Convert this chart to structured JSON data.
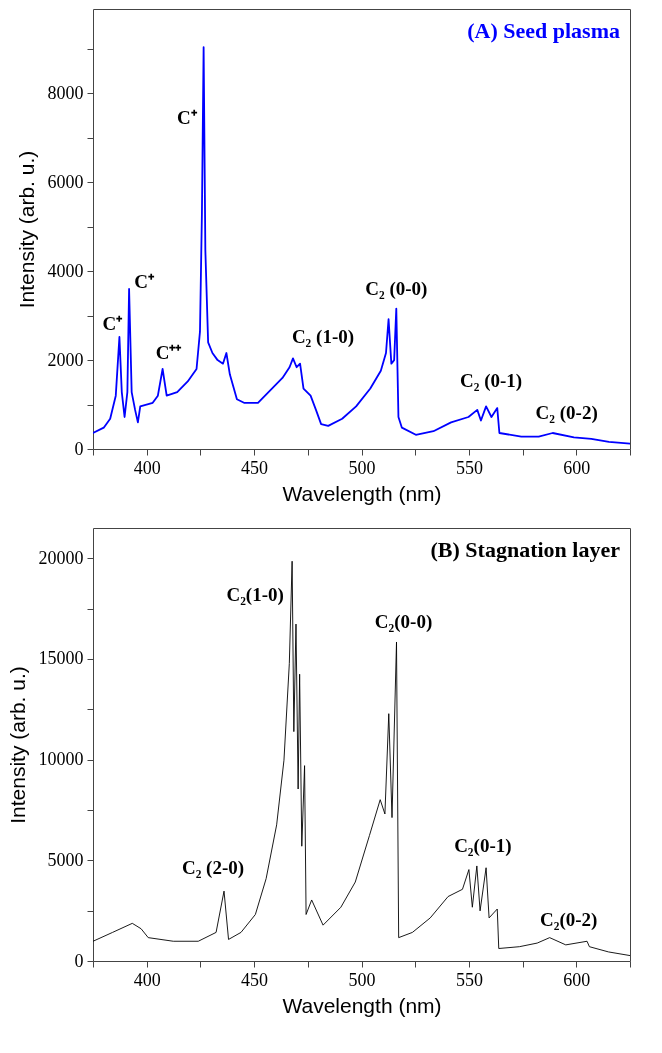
{
  "chart_data": [
    {
      "type": "line",
      "title": "(A) Seed plasma",
      "xlabel": "Wavelength (nm)",
      "ylabel": "Intensity (arb. u.)",
      "xlim": [
        375,
        625
      ],
      "ylim": [
        0,
        9900
      ],
      "xticks": [
        {
          "value": 375,
          "label": null
        },
        400,
        {
          "value": 425,
          "label": null
        },
        450,
        {
          "value": 475,
          "label": null
        },
        500,
        {
          "value": 525,
          "label": null
        },
        550,
        {
          "value": 575,
          "label": null
        },
        600,
        {
          "value": 625,
          "label": null
        }
      ],
      "yticks": [
        0,
        {
          "value": 1000,
          "label": null
        },
        2000,
        {
          "value": 3000,
          "label": null
        },
        4000,
        {
          "value": 5000,
          "label": null
        },
        6000,
        {
          "value": 7000,
          "label": null
        },
        8000,
        {
          "value": 9000,
          "label": null
        }
      ],
      "line_style": "solid",
      "series": [
        {
          "color": "#0000ff",
          "x": [
            375,
            380,
            383,
            385.6,
            387.3,
            388.4,
            389.7,
            391,
            391.8,
            393,
            394.6,
            395.9,
            397,
            402.8,
            405.2,
            407.4,
            409.3,
            414.2,
            419.1,
            423.2,
            424.8,
            425.7,
            426.5,
            427.3,
            428.6,
            430.6,
            433,
            435.5,
            437.1,
            438.7,
            442,
            445.3,
            451.8,
            458.3,
            463.2,
            466.5,
            468.1,
            469.8,
            471.4,
            473,
            476.3,
            478.8,
            481.2,
            484.5,
            491,
            497.5,
            504.1,
            509,
            511.4,
            512.6,
            513.9,
            515.2,
            516.2,
            517.2,
            518.8,
            525.3,
            533.5,
            541.7,
            549.8,
            553.9,
            555.6,
            558,
            560.5,
            563.2,
            564.2,
            574.4,
            582.5,
            589,
            598.9,
            607,
            615.2,
            625
          ],
          "values": [
            360,
            480,
            680,
            1200,
            2520,
            1280,
            720,
            1280,
            3600,
            1280,
            880,
            600,
            960,
            1040,
            1200,
            1800,
            1200,
            1280,
            1520,
            1800,
            2640,
            5280,
            9040,
            4480,
            2400,
            2160,
            2000,
            1920,
            2160,
            1680,
            1120,
            1040,
            1040,
            1360,
            1600,
            1840,
            2040,
            1840,
            1920,
            1360,
            1200,
            880,
            560,
            520,
            680,
            960,
            1360,
            1760,
            2160,
            2920,
            1920,
            2000,
            3160,
            720,
            480,
            320,
            400,
            600,
            720,
            880,
            640,
            960,
            720,
            920,
            360,
            280,
            280,
            360,
            260,
            230,
            160,
            120
          ]
        }
      ],
      "annotations": [
        {
          "text": "C⁺",
          "x": 387.3,
          "y": 2520
        },
        {
          "text": "C⁺",
          "x": 391.8,
          "y": 3600
        },
        {
          "text": "C⁺⁺",
          "x": 407.4,
          "y": 1800
        },
        {
          "text": "C⁺",
          "x": 426.2,
          "y": 7500
        },
        {
          "text": "C₂ (1-0)",
          "x": 468.1,
          "y": 2040
        },
        {
          "text": "C₂ (0-0)",
          "x": 516.2,
          "y": 3160
        },
        {
          "text": "C₂ (0-1)",
          "x": 558,
          "y": 960
        },
        {
          "text": "C₂ (0-2)",
          "x": 589,
          "y": 360
        }
      ]
    },
    {
      "type": "line",
      "title": "(B) Stagnation layer",
      "xlabel": "Wavelength (nm)",
      "ylabel": "Intensity (arb. u.)",
      "xlim": [
        375,
        625
      ],
      "ylim": [
        0,
        21500
      ],
      "xticks": [
        {
          "value": 375,
          "label": null
        },
        400,
        {
          "value": 425,
          "label": null
        },
        450,
        {
          "value": 475,
          "label": null
        },
        500,
        {
          "value": 525,
          "label": null
        },
        550,
        {
          "value": 575,
          "label": null
        },
        600,
        {
          "value": 625,
          "label": null
        }
      ],
      "yticks": [
        0,
        {
          "value": 2500,
          "label": null
        },
        5000,
        {
          "value": 7500,
          "label": null
        },
        10000,
        {
          "value": 12500,
          "label": null
        },
        15000,
        {
          "value": 17500,
          "label": null
        },
        20000
      ],
      "line_style": "solid",
      "series": [
        {
          "color": "#000000",
          "x": [
            375,
            384.1,
            393.3,
            397.4,
            400.7,
            412.4,
            424,
            432.3,
            436,
            438.1,
            443.9,
            450.6,
            455.6,
            460.5,
            463.9,
            466.4,
            467.7,
            468.5,
            469.5,
            470.5,
            471.2,
            472.2,
            473.5,
            474.2,
            476.8,
            482.1,
            490.4,
            497.1,
            503.7,
            508.7,
            510.9,
            512.7,
            514.2,
            516.3,
            517.3,
            523.7,
            532,
            540.3,
            547,
            550,
            551.6,
            553.7,
            555.2,
            558,
            559.4,
            563.2,
            563.9,
            573.5,
            581.8,
            587.6,
            595.1,
            605,
            606.1,
            615,
            625
          ],
          "values": [
            980,
            1420,
            1870,
            1600,
            1160,
            980,
            980,
            1420,
            3470,
            1070,
            1420,
            2310,
            4090,
            6760,
            9970,
            14770,
            19850,
            11390,
            16730,
            8540,
            14240,
            5700,
            9700,
            2310,
            3030,
            1780,
            2670,
            3920,
            6230,
            8010,
            7300,
            12280,
            7120,
            15840,
            1160,
            1420,
            2140,
            3200,
            3560,
            4540,
            2670,
            4720,
            2490,
            4630,
            2140,
            2580,
            620,
            710,
            890,
            1160,
            800,
            980,
            710,
            450,
            270
          ]
        }
      ],
      "annotations": [
        {
          "text": "C₂ (2-0)",
          "x": 436,
          "y": 3470
        },
        {
          "text": "C₂(1-0)",
          "x": 467.7,
          "y": 19850
        },
        {
          "text": "C₂(0-0)",
          "x": 516.3,
          "y": 15840
        },
        {
          "text": "C₂(0-1)",
          "x": 553.7,
          "y": 4720
        },
        {
          "text": "C₂(0-2)",
          "x": 587.6,
          "y": 1160
        }
      ]
    }
  ]
}
